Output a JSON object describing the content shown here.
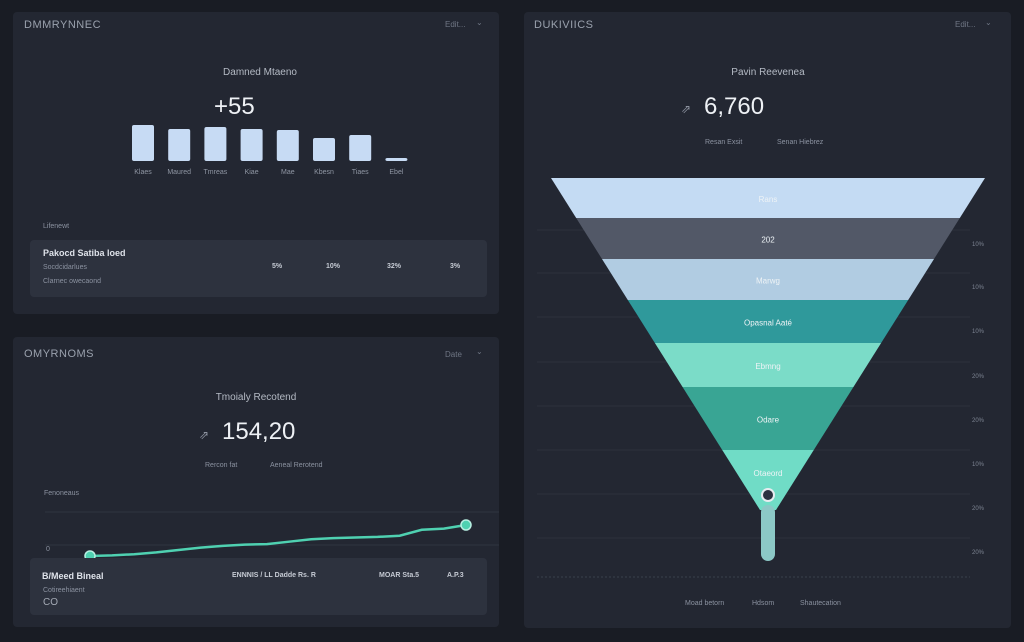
{
  "panel_tl": {
    "title": "DMMRYNNEC",
    "menu": "Edit...",
    "subtitle": "Damned Mtaeno",
    "kpi": "+55",
    "bar_labels": [
      "Klaes",
      "Maured",
      "Tmreas",
      "Kiae",
      "Mae",
      "Kbesn",
      "Tiaes",
      "Ebel"
    ],
    "bar_values": [
      36,
      32,
      34,
      32,
      31,
      23,
      26,
      3
    ],
    "bar_color": "#c7dbf4",
    "section_label": "Lifenewt",
    "summary": {
      "title": "Pakocd Satiba loed",
      "line1": "Socdcidarlues",
      "line2": "Clarnec owecaond",
      "values": [
        "5%",
        "10%",
        "32%",
        "3%"
      ]
    }
  },
  "panel_bl": {
    "title": "OMYRNOMS",
    "menu": "Date",
    "subtitle": "Tmoialy Recotend",
    "kpi": "154,20",
    "kpi_icon": "trend-icon",
    "legend": [
      "Rercon fat",
      "Aeneal Rerotend"
    ],
    "axis_label": "Fenoneaus",
    "axis_tick": "0",
    "line_values": [
      0,
      0.5,
      1.5,
      3,
      5,
      7,
      8.5,
      9.5,
      10,
      12,
      14,
      15,
      15.5,
      16,
      17,
      22,
      23,
      26
    ],
    "line_color": "#4fd1b1",
    "summary": {
      "title": "B/Meed Bineal",
      "line1": "Cotireehiaent",
      "line2": "CO",
      "values": [
        "ENNNIS / LL Dadde Rs. R",
        "MOAR Sta.5",
        "A.P.3"
      ]
    }
  },
  "panel_r": {
    "title": "DUKIVIICS",
    "menu": "Edit...",
    "subtitle": "Pavin Reevenea",
    "kpi": "6,760",
    "kpi_icon": "trend-icon",
    "legend_top": [
      "Resan Exsit",
      "Senan Hiebrez"
    ],
    "stages": [
      {
        "label": "Rans",
        "color": "#c4dbf3"
      },
      {
        "label": "202",
        "color": "#525867"
      },
      {
        "label": "Marwg",
        "color": "#b1cce2"
      },
      {
        "label": "Opasnal Aaté",
        "color": "#2f999b"
      },
      {
        "label": "Ebmng",
        "color": "#7bdcc8"
      },
      {
        "label": "Odare",
        "color": "#39a594"
      },
      {
        "label": "Otaeord",
        "color": "#70dcc6"
      }
    ],
    "stem_color": "#8cc8c6",
    "axis_ticks": [
      "10%",
      "10%",
      "10%",
      "20%",
      "20%",
      "10%",
      "20%",
      "20%"
    ],
    "legend": [
      "Moad betorn",
      "Hdsom",
      "Shautecation"
    ]
  }
}
